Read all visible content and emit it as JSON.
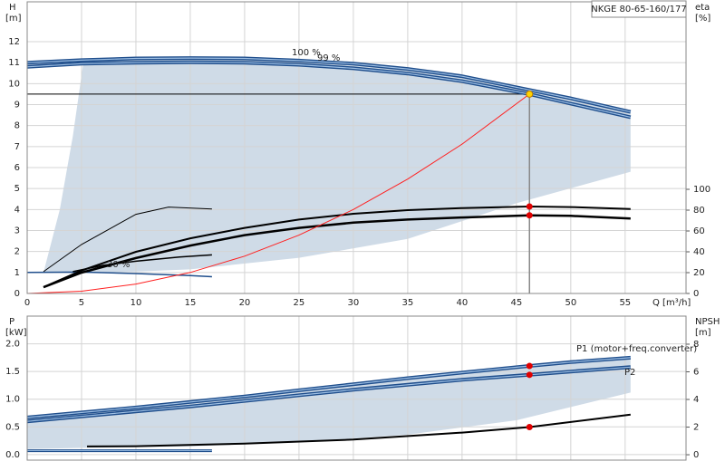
{
  "chart_data": [
    {
      "type": "line",
      "title": "NKGE 80-65-160/177",
      "ylabel": "H",
      "yunit": "[m]",
      "y2label": "eta",
      "y2unit": "[%]",
      "xlabel": "Q [m³/h]",
      "xlim": [
        0,
        60.6
      ],
      "xticks": [
        0,
        5,
        10,
        15,
        20,
        25,
        30,
        35,
        40,
        45,
        50,
        55
      ],
      "ylim": [
        0,
        13.9
      ],
      "yticks": [
        0,
        1,
        2,
        3,
        4,
        5,
        6,
        7,
        8,
        9,
        10,
        11,
        12
      ],
      "y2lim": [
        0,
        280
      ],
      "y2ticks": [
        0,
        20,
        40,
        60,
        80,
        100
      ],
      "grid": true,
      "region": {
        "color": "#cfdbe7",
        "x": [
          5.2,
          10,
          20,
          30,
          40,
          46.2,
          55.5,
          55.5,
          45,
          35,
          25,
          15,
          8,
          1.5,
          3,
          4.2
        ],
        "y": [
          11.12,
          11.2,
          11.2,
          10.95,
          10.35,
          9.7,
          8.65,
          5.8,
          4.3,
          2.6,
          1.7,
          1.15,
          1.0,
          1.0,
          4,
          7.5
        ]
      },
      "duty_point": {
        "x": 46.2,
        "y": 9.5,
        "color": "#ffd400"
      },
      "highlight_x": 46.2,
      "series": [
        {
          "name": "100 %",
          "color": "#1f4e8c",
          "width": 4,
          "x": [
            0,
            5,
            10,
            15,
            20,
            25,
            30,
            35,
            40,
            46.2,
            50,
            55.5
          ],
          "values": [
            11.0,
            11.12,
            11.2,
            11.22,
            11.2,
            11.1,
            10.95,
            10.7,
            10.35,
            9.7,
            9.3,
            8.65
          ]
        },
        {
          "name": "99 %",
          "color": "#1f4e8c",
          "width": 4,
          "x": [
            0,
            5,
            10,
            15,
            20,
            25,
            30,
            35,
            40,
            46.2,
            50,
            55.5
          ],
          "values": [
            10.8,
            10.95,
            11.0,
            11.02,
            11.0,
            10.9,
            10.73,
            10.48,
            10.12,
            9.5,
            9.05,
            8.4
          ]
        },
        {
          "name": "30 %",
          "color": "#1f4e8c",
          "width": 1.5,
          "x": [
            0,
            5,
            10,
            15,
            17
          ],
          "values": [
            1.0,
            1.02,
            0.95,
            0.85,
            0.8
          ]
        },
        {
          "color": "#000000",
          "width": 1,
          "axis": "y2",
          "x": [
            1.5,
            5,
            10,
            13,
            17
          ],
          "values": [
            21,
            47,
            76,
            83,
            81
          ]
        },
        {
          "color": "#000000",
          "width": 1.5,
          "axis": "y2",
          "x": [
            4.2,
            7,
            10,
            14,
            17
          ],
          "values": [
            21,
            27,
            31,
            35,
            37
          ]
        },
        {
          "color": "#000000",
          "width": 2,
          "axis": "y2",
          "dot": "#e00000",
          "x": [
            1.5,
            5,
            10,
            15,
            20,
            25,
            30,
            35,
            40,
            46.2,
            50,
            55.5
          ],
          "values": [
            6,
            22,
            40,
            53,
            63,
            71,
            76.5,
            80,
            82,
            83.5,
            83,
            81
          ]
        },
        {
          "color": "#000000",
          "width": 2.5,
          "axis": "y2",
          "dot": "#e00000",
          "x": [
            1.5,
            5,
            10,
            15,
            20,
            25,
            30,
            35,
            40,
            46.2,
            50,
            55.5
          ],
          "values": [
            6,
            20,
            34,
            46,
            56,
            63,
            68,
            71,
            73,
            75,
            74.5,
            72
          ]
        },
        {
          "color": "#ff2020",
          "width": 1,
          "x": [
            0,
            5,
            10,
            15,
            20,
            25,
            30,
            35,
            40,
            46.2
          ],
          "values": [
            0,
            0.11,
            0.45,
            1.0,
            1.78,
            2.78,
            4.0,
            5.45,
            7.12,
            9.5
          ]
        }
      ]
    },
    {
      "type": "line",
      "ylabel": "P",
      "yunit": "[kW]",
      "y2label": "NPSH",
      "y2unit": "[m]",
      "xlim": [
        0,
        60.6
      ],
      "xticks": [
        0,
        5,
        10,
        15,
        20,
        25,
        30,
        35,
        40,
        45,
        50,
        55
      ],
      "ylim": [
        -0.1,
        2.5
      ],
      "yticks": [
        {
          "value": 0,
          "label": "0.0"
        },
        0.5,
        {
          "value": 1,
          "label": "1.0"
        },
        1.5,
        {
          "value": 2,
          "label": "2.0"
        }
      ],
      "y2lim": [
        -0.39,
        10.03
      ],
      "y2ticks": [
        0,
        2,
        4,
        6,
        8
      ],
      "grid": true,
      "region": {
        "color": "#cfdbe7",
        "x": [
          0,
          5,
          10,
          20,
          30,
          40,
          46.2,
          55.5,
          55.5,
          45,
          35,
          25,
          15,
          5,
          0
        ],
        "y": [
          0.67,
          0.76,
          0.85,
          1.05,
          1.27,
          1.48,
          1.6,
          1.75,
          1.12,
          0.62,
          0.36,
          0.22,
          0.15,
          0.12,
          0.1
        ]
      },
      "highlight_x": 46.2,
      "series": [
        {
          "name": "P1 (motor+freq.converter)",
          "color": "#1f4e8c",
          "width": 4,
          "dot": "#e00000",
          "x": [
            0,
            5,
            10,
            15,
            20,
            25,
            30,
            35,
            40,
            46.2,
            50,
            55.5
          ],
          "values": [
            0.67,
            0.76,
            0.85,
            0.95,
            1.05,
            1.16,
            1.27,
            1.38,
            1.48,
            1.6,
            1.67,
            1.75
          ]
        },
        {
          "name": "P2",
          "color": "#1f4e8c",
          "width": 4,
          "dot": "#e00000",
          "x": [
            0,
            5,
            10,
            15,
            20,
            25,
            30,
            35,
            40,
            46.2,
            50,
            55.5
          ],
          "values": [
            0.6,
            0.69,
            0.78,
            0.87,
            0.97,
            1.07,
            1.17,
            1.26,
            1.35,
            1.44,
            1.5,
            1.58
          ]
        },
        {
          "color": "#1f4e8c",
          "width": 3,
          "x": [
            0,
            17
          ],
          "values": [
            0.07,
            0.07
          ]
        },
        {
          "color": "#000000",
          "width": 2,
          "axis": "y2",
          "dot": "#e00000",
          "x": [
            5.5,
            10,
            20,
            30,
            40,
            46.2,
            55.5
          ],
          "values": [
            0.6,
            0.62,
            0.8,
            1.1,
            1.6,
            2.0,
            2.9
          ]
        }
      ]
    }
  ]
}
